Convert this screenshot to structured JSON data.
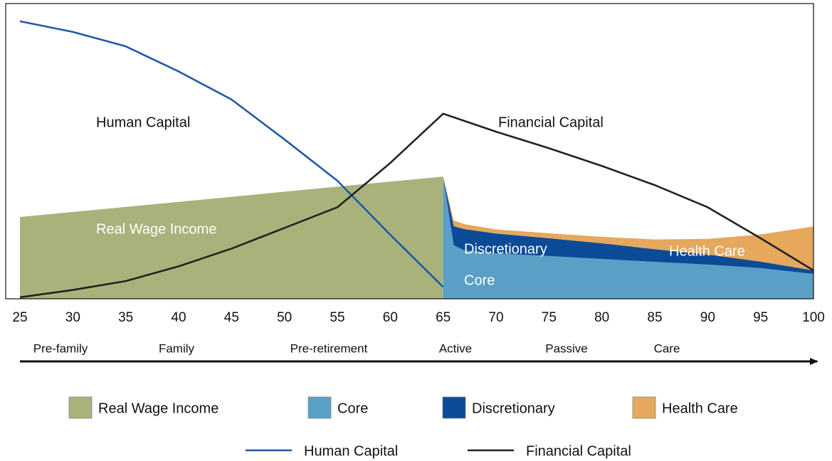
{
  "chart_data": {
    "type": "area",
    "xlim": [
      25,
      100
    ],
    "xticks": [
      25,
      30,
      35,
      40,
      45,
      50,
      55,
      60,
      65,
      70,
      75,
      80,
      85,
      90,
      95,
      100
    ],
    "ylim": [
      0,
      100
    ],
    "stages": [
      "Pre-family",
      "Family",
      "Pre-retirement",
      "Active",
      "Passive",
      "Care"
    ],
    "annotations": [
      "Human Capital",
      "Financial Capital",
      "Real Wage Income",
      "Discretionary",
      "Health Care",
      "Core"
    ],
    "series": [
      {
        "name": "Real Wage Income",
        "type": "area",
        "color": "#a9b27b",
        "x": [
          25,
          65
        ],
        "values": [
          27.7,
          41.4
        ]
      },
      {
        "name": "Core",
        "type": "area",
        "color": "#5a9fc5",
        "x": [
          65,
          66,
          67,
          70,
          75,
          80,
          85,
          90,
          95,
          100
        ],
        "values": [
          41.4,
          18.1,
          16.4,
          15.4,
          14.5,
          13.5,
          12.5,
          11.6,
          10.4,
          8.4
        ]
      },
      {
        "name": "Discretionary",
        "type": "area",
        "color": "#0b4a97",
        "x": [
          65,
          66,
          67,
          70,
          75,
          80,
          85,
          90,
          95,
          100
        ],
        "values": [
          0,
          6.5,
          7.2,
          6.7,
          6.0,
          5.3,
          4.3,
          3.4,
          2.2,
          1.2
        ]
      },
      {
        "name": "Health Care",
        "type": "area",
        "color": "#e5a85c",
        "x": [
          65,
          66,
          67,
          70,
          75,
          80,
          85,
          90,
          95,
          100
        ],
        "values": [
          0,
          1.9,
          1.7,
          1.4,
          1.7,
          2.2,
          3.3,
          5.3,
          9.2,
          14.9
        ]
      },
      {
        "name": "Human Capital",
        "type": "line",
        "color": "#1f5aa6",
        "x": [
          25,
          30,
          35,
          40,
          45,
          50,
          55,
          60,
          65
        ],
        "values": [
          94,
          90.4,
          85.5,
          77,
          67.5,
          54,
          40,
          21.7,
          4
        ]
      },
      {
        "name": "Financial Capital",
        "type": "line",
        "color": "#222222",
        "x": [
          25,
          30,
          35,
          40,
          45,
          50,
          55,
          60,
          65,
          70,
          75,
          80,
          85,
          90,
          95,
          100
        ],
        "values": [
          0.5,
          3,
          6,
          11,
          17,
          24,
          31,
          46,
          62.7,
          56.6,
          51,
          45,
          38.5,
          31,
          20.5,
          9.6
        ]
      }
    ]
  }
}
